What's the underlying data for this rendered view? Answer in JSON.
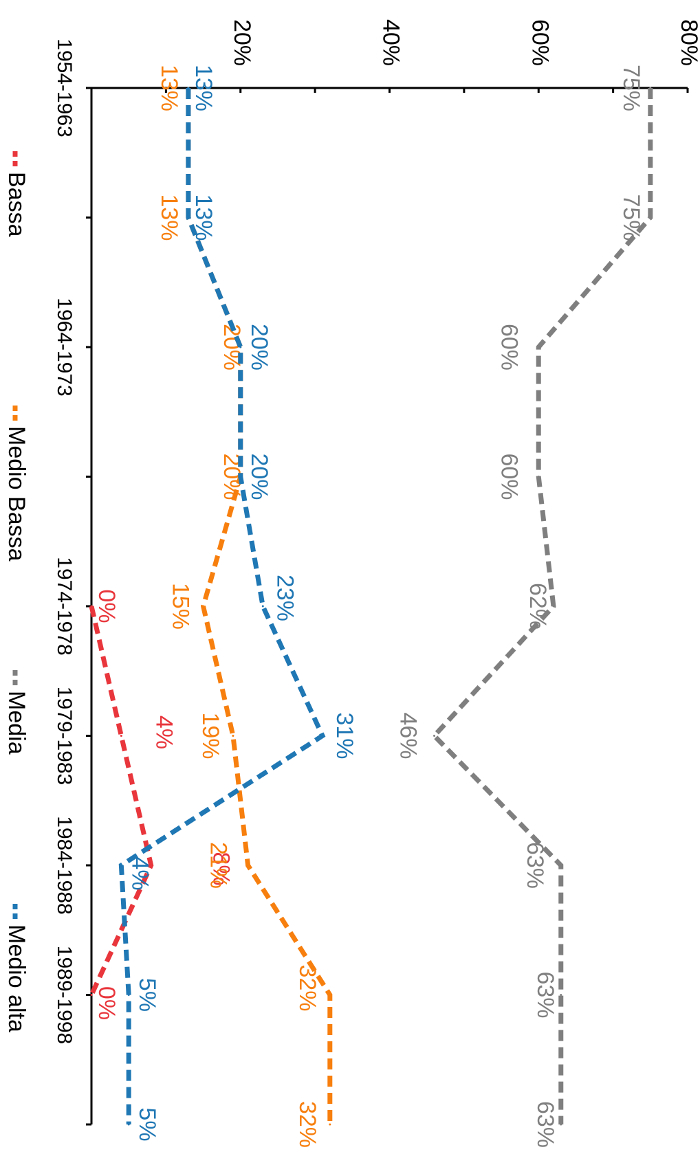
{
  "chart_data": {
    "type": "line",
    "orientation": "rotated-90-clockwise",
    "title": "",
    "xlabel": "",
    "ylabel": "",
    "categories": [
      "1954-1963",
      "",
      "1964-1973",
      "",
      "1974-1978",
      "1979-1983",
      "1984-1988",
      "1989-1998",
      ""
    ],
    "ylim": [
      0,
      80
    ],
    "yticks": [
      20,
      40,
      60,
      80
    ],
    "ytick_labels": [
      "20%",
      "40%",
      "60%",
      "80%"
    ],
    "grid": false,
    "legend_position": "bottom",
    "series": [
      {
        "name": "Bassa",
        "color": "#e8363c",
        "values": [
          null,
          null,
          null,
          null,
          0,
          4,
          8,
          0,
          null
        ],
        "labels": [
          "",
          "",
          "",
          "",
          "0%",
          "4%",
          "8%",
          "0%",
          ""
        ]
      },
      {
        "name": "Medio Bassa",
        "color": "#f77f0e",
        "values": [
          13,
          13,
          20,
          20,
          15,
          19,
          21,
          32,
          32
        ],
        "labels": [
          "13%",
          "13%",
          "20%",
          "20%",
          "15%",
          "19%",
          "21%",
          "32%",
          "32%"
        ]
      },
      {
        "name": "Media",
        "color": "#7f7f7f",
        "values": [
          75,
          75,
          60,
          60,
          62,
          46,
          63,
          63,
          63
        ],
        "labels": [
          "75%",
          "75%",
          "60%",
          "60%",
          "62%",
          "46%",
          "63%",
          "63%",
          "63%"
        ]
      },
      {
        "name": "Medio alta",
        "color": "#1f77b4",
        "values": [
          13,
          13,
          20,
          20,
          23,
          31,
          4,
          5,
          5
        ],
        "labels": [
          "13%",
          "13%",
          "20%",
          "20%",
          "23%",
          "31%",
          "4%",
          "5%",
          "5%"
        ]
      }
    ]
  }
}
